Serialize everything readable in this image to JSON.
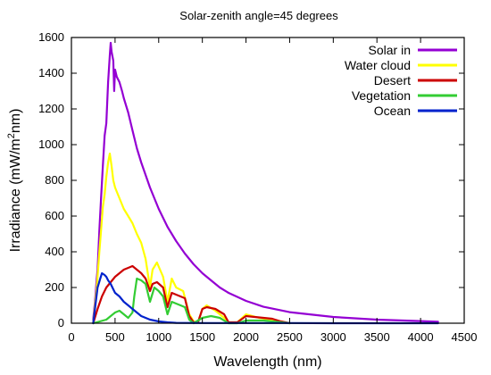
{
  "chart_data": {
    "type": "line",
    "title": "Solar-zenith angle=45 degrees",
    "xlabel": "Wavelength (nm)",
    "ylabel_parts": [
      "Irradiance (mW/m",
      "2",
      "nm)"
    ],
    "xlim": [
      0,
      4500
    ],
    "ylim": [
      0,
      1600
    ],
    "xticks": [
      0,
      500,
      1000,
      1500,
      2000,
      2500,
      3000,
      3500,
      4000,
      4500
    ],
    "yticks": [
      0,
      200,
      400,
      600,
      800,
      1000,
      1200,
      1400,
      1600
    ],
    "grid": false,
    "legend_position": "top-right",
    "series": [
      {
        "name": "Solar in",
        "color": "#9400d3",
        "points": [
          [
            250,
            20
          ],
          [
            270,
            120
          ],
          [
            290,
            250
          ],
          [
            300,
            300
          ],
          [
            320,
            520
          ],
          [
            340,
            700
          ],
          [
            360,
            880
          ],
          [
            380,
            1050
          ],
          [
            400,
            1120
          ],
          [
            420,
            1350
          ],
          [
            440,
            1500
          ],
          [
            450,
            1570
          ],
          [
            460,
            1520
          ],
          [
            480,
            1470
          ],
          [
            490,
            1300
          ],
          [
            500,
            1420
          ],
          [
            520,
            1380
          ],
          [
            550,
            1350
          ],
          [
            580,
            1300
          ],
          [
            600,
            1260
          ],
          [
            650,
            1180
          ],
          [
            700,
            1080
          ],
          [
            750,
            980
          ],
          [
            800,
            900
          ],
          [
            900,
            760
          ],
          [
            1000,
            640
          ],
          [
            1100,
            540
          ],
          [
            1200,
            460
          ],
          [
            1300,
            390
          ],
          [
            1400,
            330
          ],
          [
            1500,
            280
          ],
          [
            1600,
            240
          ],
          [
            1700,
            200
          ],
          [
            1800,
            170
          ],
          [
            2000,
            125
          ],
          [
            2200,
            92
          ],
          [
            2500,
            62
          ],
          [
            3000,
            35
          ],
          [
            3500,
            20
          ],
          [
            4000,
            12
          ],
          [
            4200,
            8
          ]
        ]
      },
      {
        "name": "Water cloud",
        "color": "#ffff00",
        "points": [
          [
            250,
            0
          ],
          [
            290,
            200
          ],
          [
            320,
            400
          ],
          [
            340,
            520
          ],
          [
            360,
            650
          ],
          [
            380,
            720
          ],
          [
            400,
            820
          ],
          [
            420,
            900
          ],
          [
            440,
            950
          ],
          [
            460,
            880
          ],
          [
            480,
            800
          ],
          [
            500,
            760
          ],
          [
            550,
            700
          ],
          [
            600,
            640
          ],
          [
            650,
            600
          ],
          [
            700,
            560
          ],
          [
            750,
            500
          ],
          [
            800,
            450
          ],
          [
            850,
            360
          ],
          [
            900,
            200
          ],
          [
            930,
            300
          ],
          [
            980,
            340
          ],
          [
            1050,
            260
          ],
          [
            1100,
            120
          ],
          [
            1150,
            250
          ],
          [
            1200,
            200
          ],
          [
            1280,
            180
          ],
          [
            1350,
            50
          ],
          [
            1400,
            10
          ],
          [
            1450,
            5
          ],
          [
            1500,
            80
          ],
          [
            1550,
            100
          ],
          [
            1650,
            70
          ],
          [
            1750,
            30
          ],
          [
            1800,
            5
          ],
          [
            1900,
            5
          ],
          [
            2000,
            50
          ],
          [
            2150,
            30
          ],
          [
            2300,
            20
          ],
          [
            2400,
            10
          ],
          [
            2500,
            0
          ]
        ]
      },
      {
        "name": "Desert",
        "color": "#cc0000",
        "points": [
          [
            250,
            0
          ],
          [
            300,
            80
          ],
          [
            350,
            150
          ],
          [
            400,
            200
          ],
          [
            450,
            230
          ],
          [
            500,
            260
          ],
          [
            550,
            280
          ],
          [
            600,
            300
          ],
          [
            650,
            310
          ],
          [
            700,
            320
          ],
          [
            750,
            300
          ],
          [
            800,
            280
          ],
          [
            850,
            250
          ],
          [
            900,
            180
          ],
          [
            930,
            220
          ],
          [
            980,
            230
          ],
          [
            1050,
            200
          ],
          [
            1100,
            90
          ],
          [
            1150,
            170
          ],
          [
            1200,
            160
          ],
          [
            1300,
            140
          ],
          [
            1350,
            40
          ],
          [
            1400,
            5
          ],
          [
            1450,
            5
          ],
          [
            1500,
            80
          ],
          [
            1550,
            90
          ],
          [
            1650,
            80
          ],
          [
            1750,
            50
          ],
          [
            1800,
            5
          ],
          [
            1900,
            5
          ],
          [
            2000,
            40
          ],
          [
            2100,
            35
          ],
          [
            2200,
            30
          ],
          [
            2300,
            25
          ],
          [
            2400,
            10
          ],
          [
            2500,
            0
          ]
        ]
      },
      {
        "name": "Vegetation",
        "color": "#33cc33",
        "points": [
          [
            250,
            0
          ],
          [
            400,
            20
          ],
          [
            450,
            40
          ],
          [
            500,
            60
          ],
          [
            550,
            70
          ],
          [
            600,
            50
          ],
          [
            650,
            30
          ],
          [
            700,
            60
          ],
          [
            720,
            150
          ],
          [
            750,
            250
          ],
          [
            800,
            240
          ],
          [
            850,
            220
          ],
          [
            900,
            120
          ],
          [
            950,
            200
          ],
          [
            1000,
            180
          ],
          [
            1050,
            150
          ],
          [
            1100,
            50
          ],
          [
            1150,
            120
          ],
          [
            1200,
            110
          ],
          [
            1300,
            90
          ],
          [
            1350,
            20
          ],
          [
            1400,
            0
          ],
          [
            1500,
            30
          ],
          [
            1600,
            40
          ],
          [
            1700,
            30
          ],
          [
            1800,
            0
          ],
          [
            1900,
            0
          ],
          [
            2000,
            15
          ],
          [
            2200,
            15
          ],
          [
            2400,
            5
          ],
          [
            2500,
            0
          ]
        ]
      },
      {
        "name": "Ocean",
        "color": "#0022cc",
        "points": [
          [
            250,
            0
          ],
          [
            300,
            200
          ],
          [
            330,
            250
          ],
          [
            350,
            280
          ],
          [
            380,
            270
          ],
          [
            400,
            260
          ],
          [
            420,
            240
          ],
          [
            450,
            220
          ],
          [
            480,
            190
          ],
          [
            500,
            170
          ],
          [
            550,
            150
          ],
          [
            600,
            120
          ],
          [
            650,
            100
          ],
          [
            700,
            80
          ],
          [
            750,
            60
          ],
          [
            800,
            40
          ],
          [
            900,
            20
          ],
          [
            1000,
            10
          ],
          [
            1100,
            5
          ],
          [
            1200,
            2
          ],
          [
            1500,
            1
          ],
          [
            2000,
            1
          ],
          [
            2500,
            1
          ],
          [
            3000,
            0
          ],
          [
            3500,
            0
          ],
          [
            4000,
            0
          ],
          [
            4200,
            0
          ]
        ]
      }
    ]
  }
}
